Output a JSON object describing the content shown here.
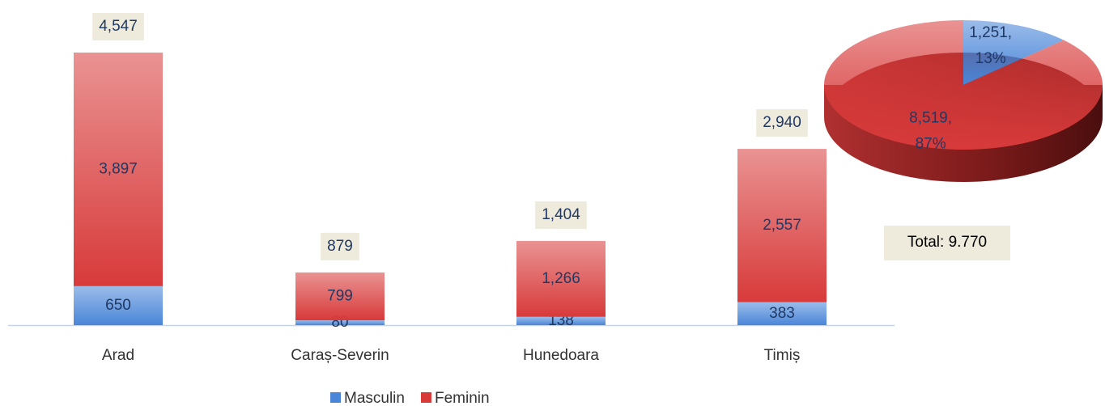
{
  "chart_data": [
    {
      "type": "stacked_bar",
      "categories": [
        "Arad",
        "Caraș-Severin",
        "Hunedoara",
        "Timiș"
      ],
      "series": [
        {
          "name": "Masculin",
          "color": "#4a86d8",
          "values": [
            650,
            80,
            138,
            383
          ]
        },
        {
          "name": "Feminin",
          "color": "#d83a3a",
          "values": [
            3897,
            799,
            1266,
            2557
          ],
          "value_labels": [
            "3,897",
            "799",
            "1,266",
            "2,557"
          ]
        }
      ],
      "totals": {
        "values": [
          4547,
          879,
          1404,
          2940
        ],
        "value_labels": [
          "4,547",
          "879",
          "1,404",
          "2,940"
        ]
      },
      "legend": "bottom"
    },
    {
      "type": "pie3d",
      "values": [
        1251,
        8519
      ],
      "value_labels": [
        "1,251,",
        "8,519,"
      ],
      "percents": [
        13,
        87
      ],
      "percent_labels": [
        "13%",
        "87%"
      ],
      "colors": [
        "#4a86d8",
        "#d83a3a"
      ],
      "annotation": "Total: 9.770"
    }
  ]
}
